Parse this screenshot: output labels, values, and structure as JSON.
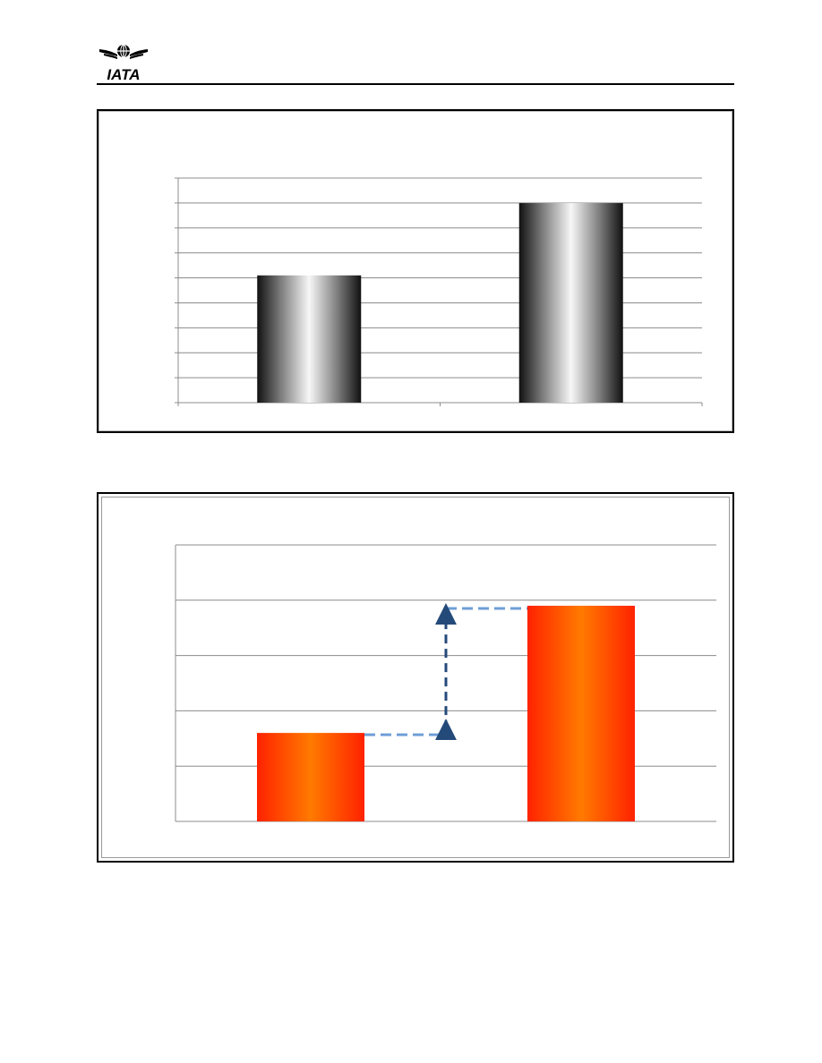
{
  "header": {
    "logo_text": "IATA",
    "logo_icon": "iata-globe-wings-icon"
  },
  "chart_data": [
    {
      "type": "bar",
      "categories": [
        "",
        ""
      ],
      "series": [
        {
          "values": [
            5.1,
            8.0
          ]
        }
      ],
      "ylim": [
        0,
        9
      ],
      "grid": true,
      "bar_style": "metallic-cylinder",
      "colors": {
        "bar_dark": "#1a1a1a",
        "bar_light": "#f5f5f5",
        "grid": "#8c8c8c"
      }
    },
    {
      "type": "bar",
      "categories": [
        "",
        ""
      ],
      "series": [
        {
          "values": [
            1.6,
            3.9
          ]
        }
      ],
      "ylim": [
        0,
        5
      ],
      "grid": true,
      "annotation": "dashed-step-arrow",
      "colors": {
        "bar_edge": "#ff2a00",
        "bar_center": "#ff7a00",
        "arrow": "#244a7a",
        "dash": "#6f9fd6",
        "grid": "#8c8c8c"
      }
    }
  ]
}
